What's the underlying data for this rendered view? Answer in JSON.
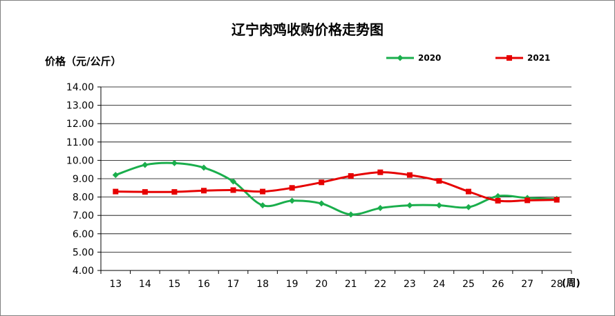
{
  "chart_data": {
    "type": "line",
    "title": "辽宁肉鸡收购价格走势图",
    "ylabel": "价格（元/公斤）",
    "xlabel": "(周)",
    "ylim": [
      4,
      14
    ],
    "ytick_step": 1,
    "ytick_labels": [
      "4.00",
      "5.00",
      "6.00",
      "7.00",
      "8.00",
      "9.00",
      "10.00",
      "11.00",
      "12.00",
      "13.00",
      "14.00"
    ],
    "x": [
      13,
      14,
      15,
      16,
      17,
      18,
      19,
      20,
      21,
      22,
      23,
      24,
      25,
      26,
      27,
      28
    ],
    "grid": true,
    "legend_position": "top-right",
    "series": [
      {
        "name": "2020",
        "color": "#1aae4c",
        "marker": "diamond",
        "values": [
          9.2,
          9.75,
          9.85,
          9.6,
          8.85,
          7.55,
          7.8,
          7.65,
          7.05,
          7.4,
          7.55,
          7.55,
          7.45,
          8.05,
          7.95,
          7.9
        ]
      },
      {
        "name": "2021",
        "color": "#e60000",
        "marker": "square",
        "values": [
          8.3,
          8.28,
          8.28,
          8.35,
          8.38,
          8.3,
          8.5,
          8.8,
          9.15,
          9.35,
          9.2,
          8.88,
          8.3,
          7.8,
          7.82,
          7.85
        ]
      }
    ]
  }
}
